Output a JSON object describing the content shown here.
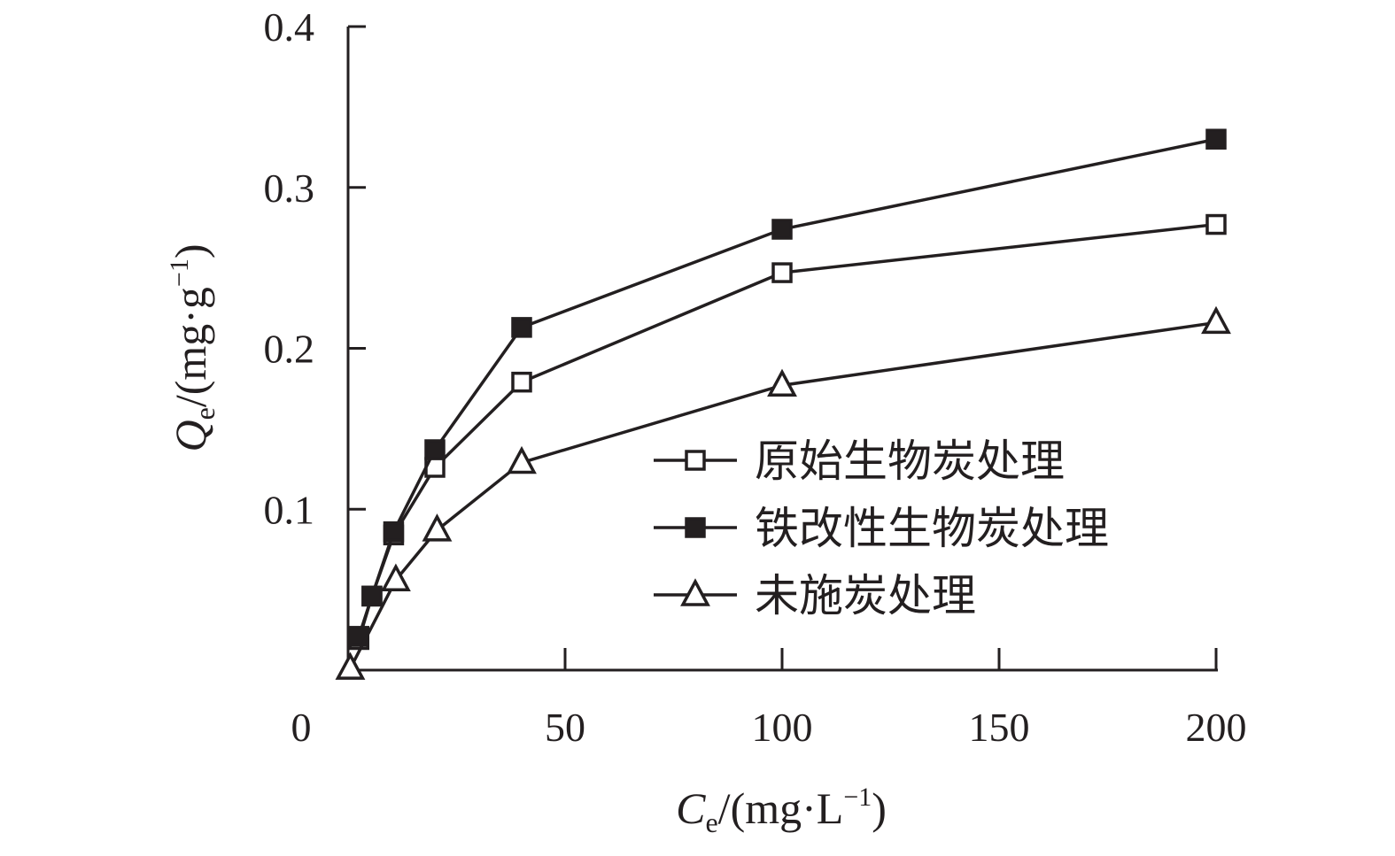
{
  "chart_data": {
    "type": "line",
    "xlabel": {
      "main": "C",
      "sub": "e",
      "unit": "/(mg·L",
      "sup": "−1",
      "close": ")"
    },
    "ylabel": {
      "main": "Q",
      "sub": "e",
      "unit": "/(mg·g",
      "sup": "−1",
      "close": ")"
    },
    "xlim": [
      0,
      200
    ],
    "ylim": [
      0,
      0.4
    ],
    "x_ticks": [
      0,
      50,
      100,
      150,
      200
    ],
    "x_tick_labels": [
      "0",
      "50",
      "100",
      "150",
      "200"
    ],
    "y_ticks": [
      0.1,
      0.2,
      0.3,
      0.4
    ],
    "y_tick_labels": [
      "0.1",
      "0.2",
      "0.3",
      "0.4"
    ],
    "grid": false,
    "legend_position": "center-right",
    "series": [
      {
        "name": "原始生物炭处理",
        "marker": "open-square",
        "x": [
          2.5,
          5.5,
          10.5,
          20,
          40,
          100,
          200
        ],
        "y": [
          0.019,
          0.046,
          0.084,
          0.126,
          0.179,
          0.247,
          0.277
        ]
      },
      {
        "name": "铁改性生物炭处理",
        "marker": "filled-square",
        "x": [
          2.5,
          5.5,
          10.5,
          20,
          40,
          100,
          200
        ],
        "y": [
          0.021,
          0.046,
          0.086,
          0.137,
          0.213,
          0.274,
          0.33
        ]
      },
      {
        "name": "未施炭处理",
        "marker": "open-triangle",
        "x": [
          0.5,
          11,
          20.5,
          40,
          100,
          200
        ],
        "y": [
          0.001,
          0.056,
          0.087,
          0.129,
          0.177,
          0.216
        ]
      }
    ],
    "color": "#231f20"
  }
}
